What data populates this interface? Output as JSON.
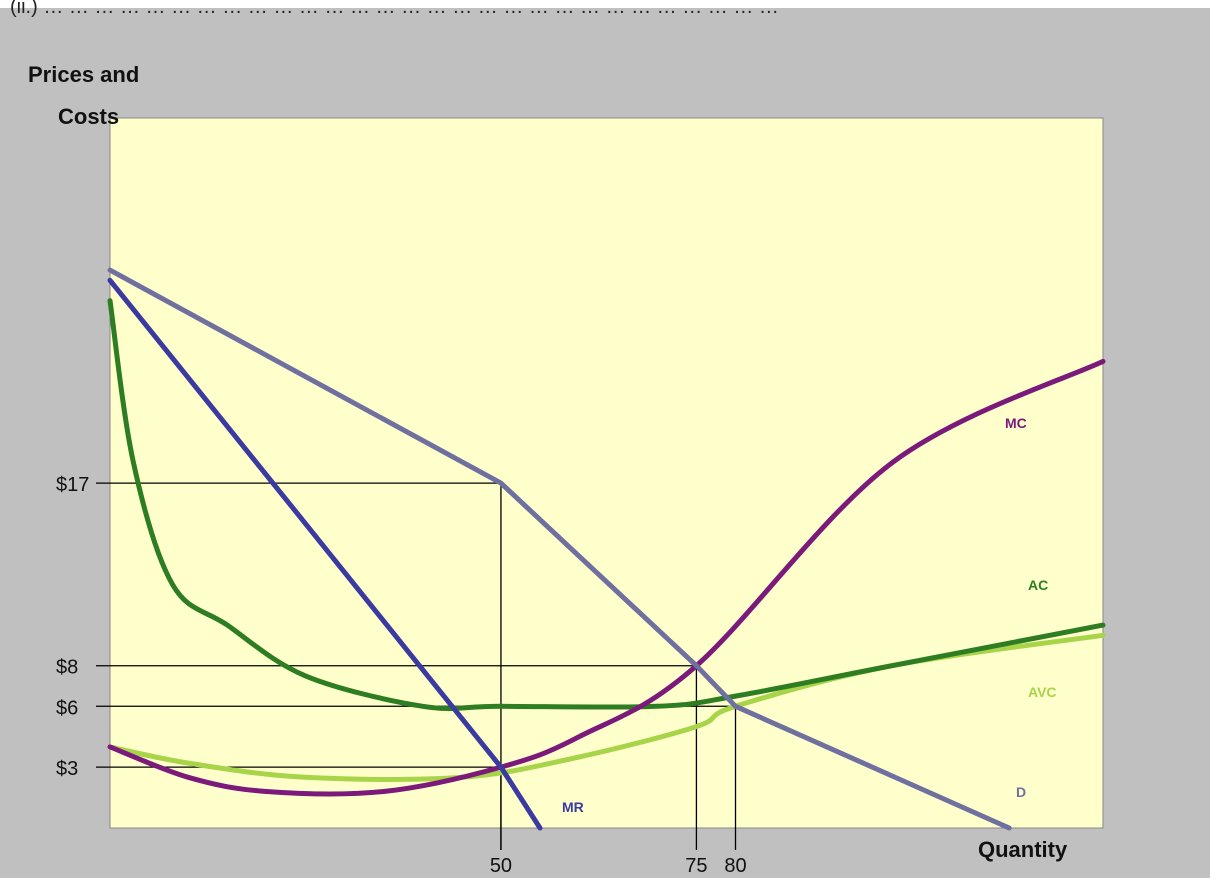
{
  "header": {
    "cropped_text": "(ii.) … … … … … … … … … … … … … … … … … … … … … … … … … … … … …"
  },
  "chart_data": {
    "type": "line",
    "ylabel_line1": "Prices and",
    "ylabel_line2": "Costs",
    "xlabel": "Quantity",
    "x_ticks": [
      "50",
      "75",
      "80"
    ],
    "y_ticks": [
      "$17",
      "$8",
      "$6",
      "$3"
    ],
    "xlim": [
      0,
      127
    ],
    "ylim": [
      0,
      35
    ],
    "colors": {
      "plot_bg": "#ffffcc",
      "outer_bg": "#c0c0c0",
      "D": "#7070a0",
      "MR": "#3a3aa0",
      "MC": "#7b1a7b",
      "AC": "#2e7d22",
      "AVC": "#a8d44a",
      "guide": "#000000"
    },
    "series": [
      {
        "name": "D",
        "x": [
          0,
          50,
          75,
          80,
          115
        ],
        "y": [
          27.5,
          17,
          8,
          6,
          0
        ]
      },
      {
        "name": "MR",
        "x": [
          0,
          25,
          50,
          55
        ],
        "y": [
          27,
          15,
          3,
          0
        ]
      },
      {
        "name": "MC",
        "x": [
          0,
          10,
          20,
          35,
          50,
          60,
          75,
          100,
          127
        ],
        "y": [
          4,
          2.5,
          1.8,
          1.8,
          3,
          4.5,
          8,
          18,
          23
        ]
      },
      {
        "name": "AC",
        "x": [
          0,
          3,
          8,
          15,
          25,
          40,
          50,
          70,
          80,
          100,
          127
        ],
        "y": [
          26,
          18,
          12,
          10,
          7.5,
          6,
          6,
          6,
          6.5,
          8,
          10
        ]
      },
      {
        "name": "AVC",
        "x": [
          0,
          10,
          25,
          45,
          60,
          75,
          80,
          100,
          127
        ],
        "y": [
          4,
          3.2,
          2.5,
          2.5,
          3.5,
          5,
          6,
          8,
          9.5
        ]
      }
    ],
    "guides": [
      {
        "x": 50,
        "y": 17
      },
      {
        "x": 75,
        "y": 8
      },
      {
        "x": 80,
        "y": 6
      },
      {
        "x": 50,
        "y": 3
      }
    ],
    "curve_labels": [
      "MC",
      "AC",
      "AVC",
      "D",
      "MR"
    ],
    "grid": false
  }
}
